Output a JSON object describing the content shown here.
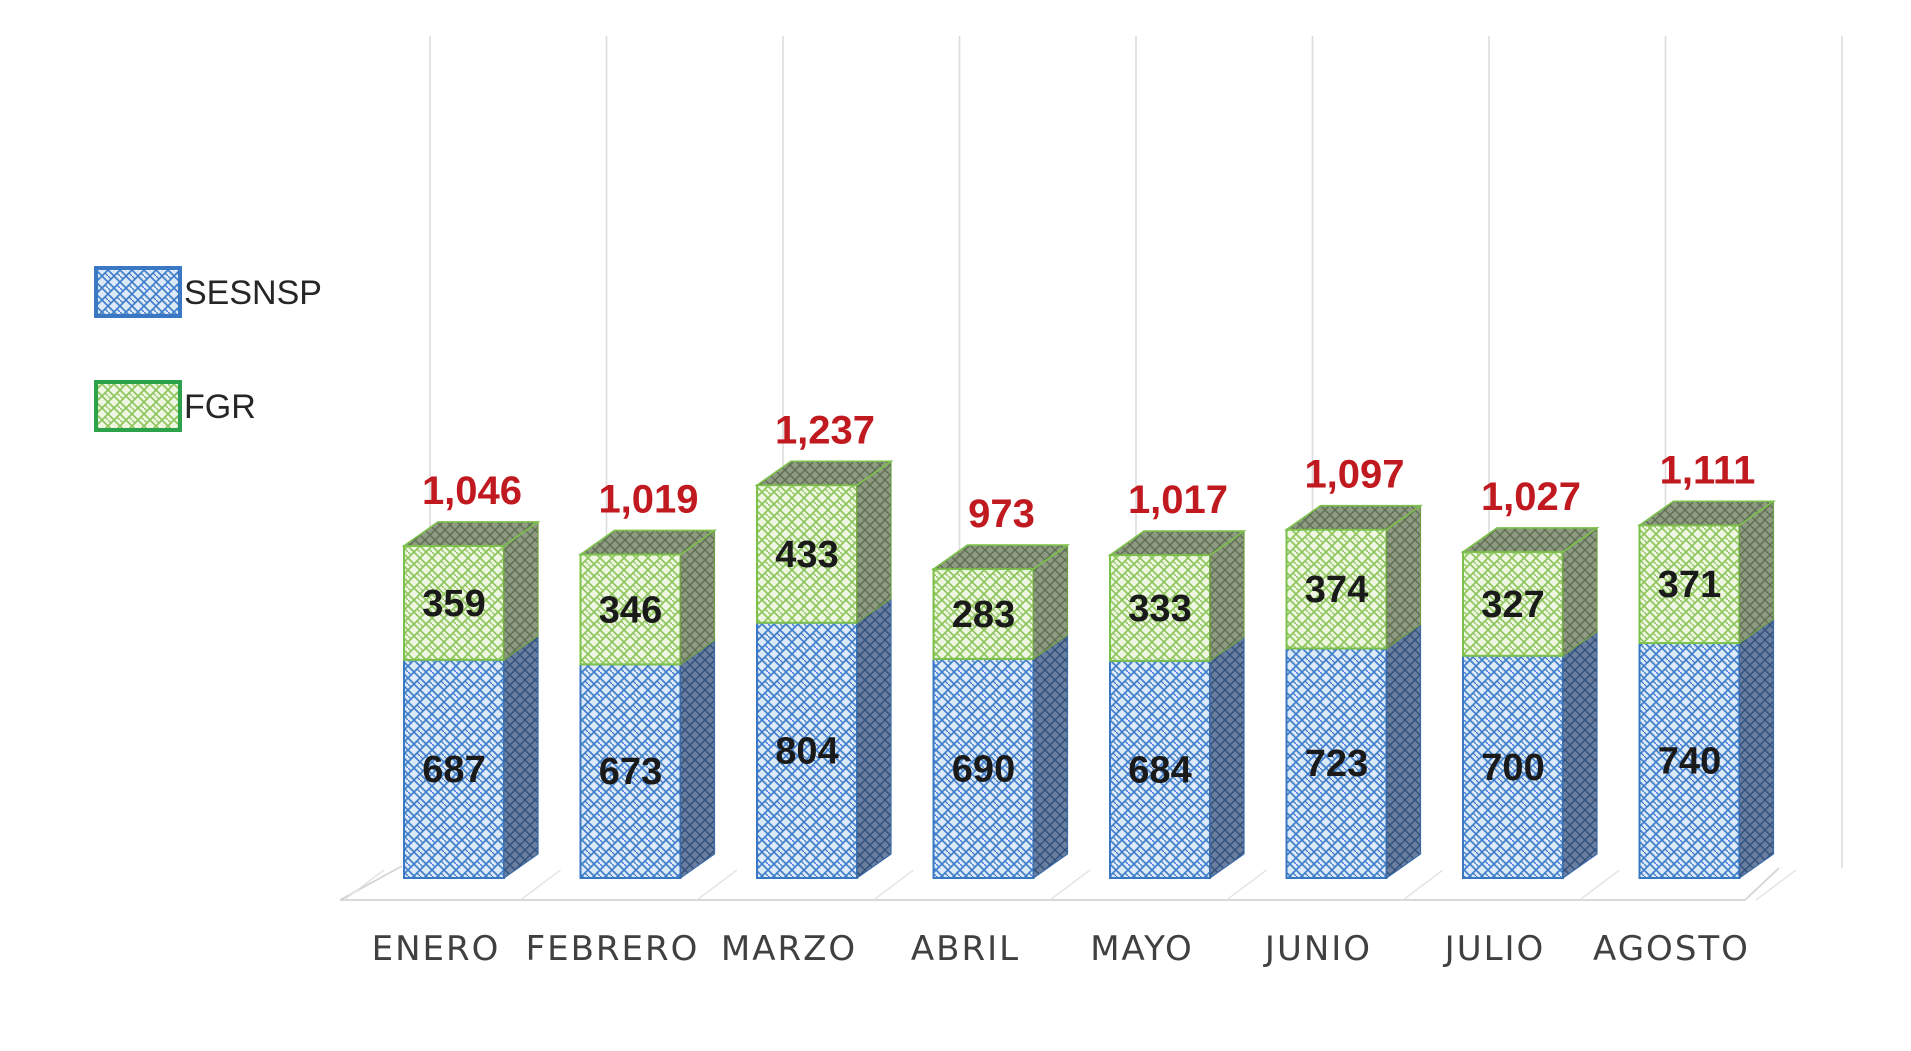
{
  "chart_data": {
    "type": "bar",
    "stacked": true,
    "style": "3d-column",
    "categories": [
      "ENERO",
      "FEBRERO",
      "MARZO",
      "ABRIL",
      "MAYO",
      "JUNIO",
      "JULIO",
      "AGOSTO"
    ],
    "series": [
      {
        "name": "SESNSP",
        "values": [
          687,
          673,
          804,
          690,
          684,
          723,
          700,
          740
        ],
        "color": "#4a86d0"
      },
      {
        "name": "FGR",
        "values": [
          359,
          346,
          433,
          283,
          333,
          374,
          327,
          371
        ],
        "color": "#7ac04a"
      }
    ],
    "totals": [
      "1,046",
      "1,019",
      "1,237",
      "973",
      "1,017",
      "1,097",
      "1,027",
      "1,111"
    ],
    "total_color": "#c0191f",
    "ylim": [
      0,
      1300
    ],
    "grid": "vertical",
    "legend_position": "left",
    "title": "",
    "xlabel": "",
    "ylabel": ""
  }
}
